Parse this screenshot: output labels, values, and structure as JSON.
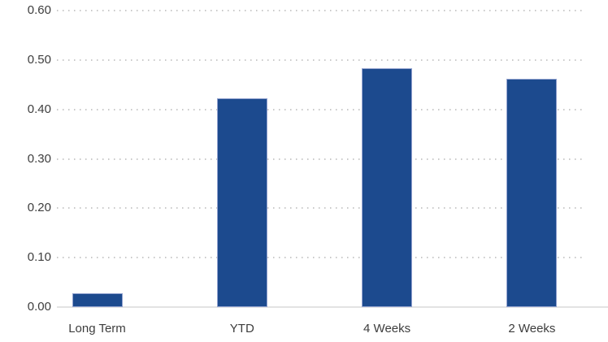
{
  "chart_data": {
    "type": "bar",
    "categories": [
      "Long Term",
      "YTD",
      "4 Weeks",
      "2 Weeks"
    ],
    "values": [
      0.028,
      0.422,
      0.483,
      0.462
    ],
    "ytick_labels": [
      "0.00",
      "0.10",
      "0.20",
      "0.30",
      "0.40",
      "0.50",
      "0.60"
    ],
    "ytick_values": [
      0.0,
      0.1,
      0.2,
      0.3,
      0.4,
      0.5,
      0.6
    ],
    "ylim": [
      0.0,
      0.6
    ],
    "grid": "dotted-horizontal",
    "legend_position": "none",
    "bar_color": "#1c4a8e",
    "bar_border_color": "#93a2cf",
    "gridline_color": "#c9c9c9",
    "axis_line_color": "#e3e3e3",
    "label_color": "#3d3d3d",
    "background_color": "#ffffff"
  }
}
